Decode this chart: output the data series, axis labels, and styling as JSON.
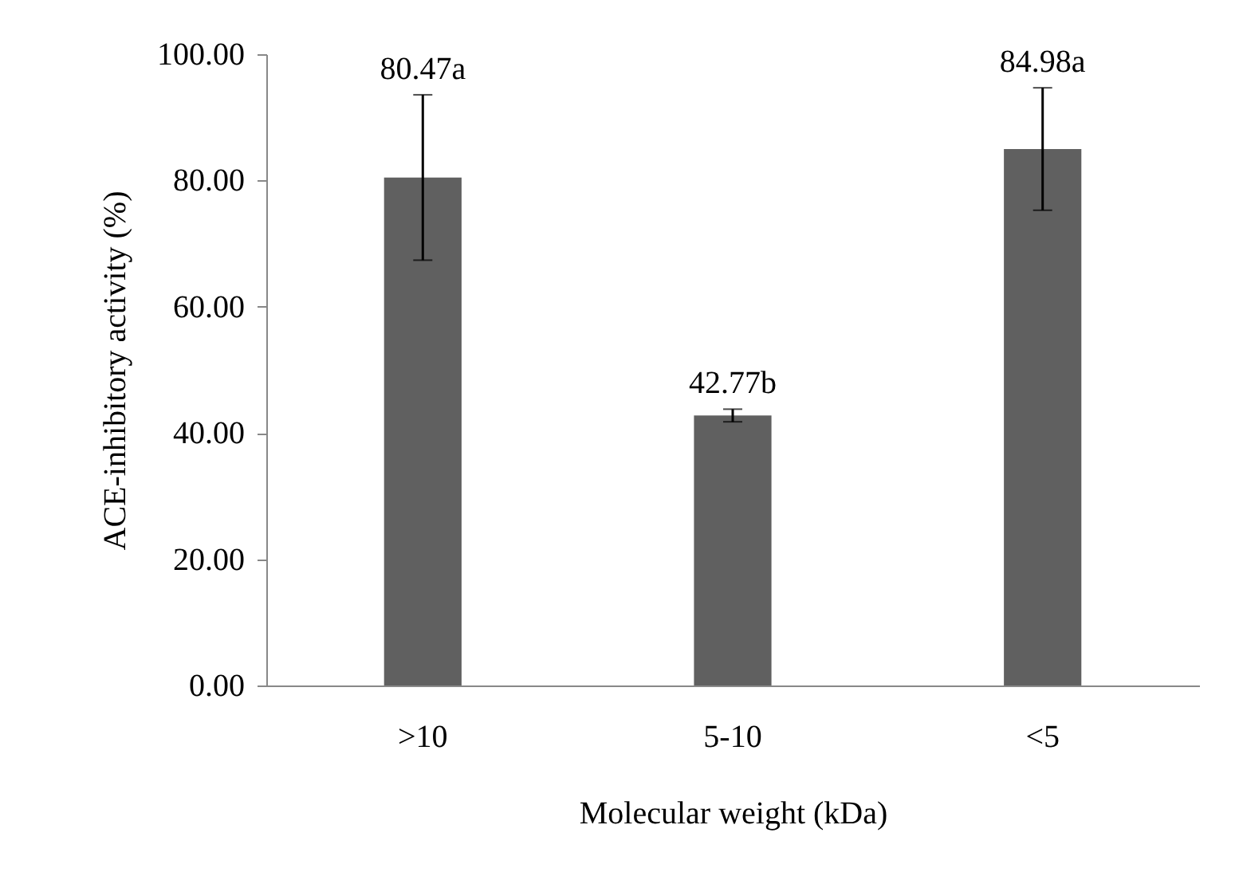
{
  "chart_data": {
    "type": "bar",
    "xlabel": "Molecular weight (kDa)",
    "ylabel": "ACE-inhibitory activity (%)",
    "categories": [
      ">10",
      "5-10",
      "<5"
    ],
    "values": [
      80.47,
      42.77,
      84.98
    ],
    "errors": [
      13.1,
      1.0,
      9.7
    ],
    "value_labels": [
      "80.47a",
      "42.77b",
      "84.98a"
    ],
    "color": "#606060",
    "ylim": [
      0,
      100
    ],
    "yticks": [
      {
        "value": 0,
        "label": "0.00"
      },
      {
        "value": 20,
        "label": "20.00"
      },
      {
        "value": 40,
        "label": "40.00"
      },
      {
        "value": 60,
        "label": "60.00"
      },
      {
        "value": 80,
        "label": "80.00"
      },
      {
        "value": 100,
        "label": "100.00"
      }
    ],
    "grid": false
  }
}
